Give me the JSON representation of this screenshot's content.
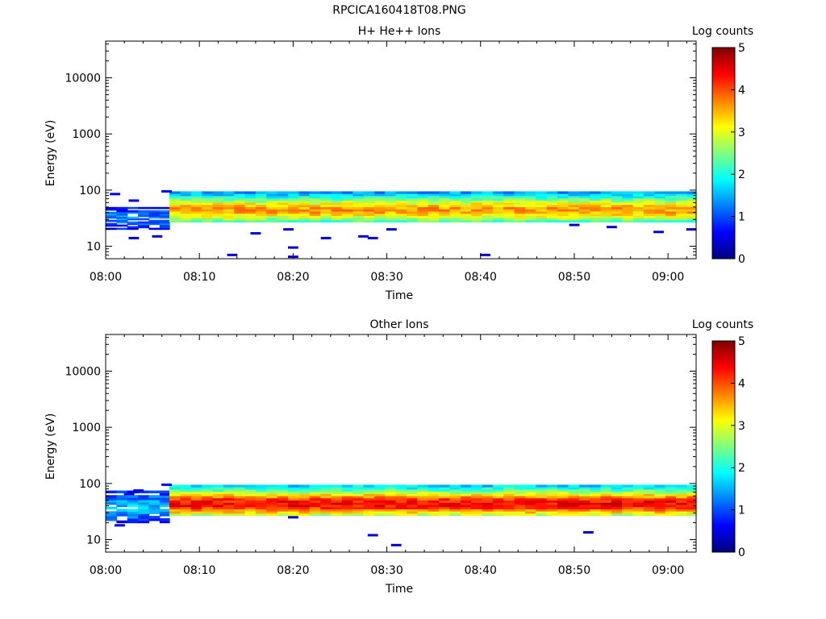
{
  "page": {
    "title": "RPCICA160418T08.PNG"
  },
  "colorbar": {
    "colors": [
      "#00007f",
      "#0000ff",
      "#007fff",
      "#00ffff",
      "#7fff7f",
      "#ffff00",
      "#ff7f00",
      "#ff0000",
      "#7f0000"
    ]
  },
  "chart_data": [
    {
      "type": "heatmap",
      "title": "H+ He++ Ions",
      "xlabel": "Time",
      "ylabel": "Energy (eV)",
      "y_scale": "log",
      "ylim": [
        6,
        45000
      ],
      "x_range_minutes": [
        0,
        63
      ],
      "xticks": [
        "08:00",
        "08:10",
        "08:20",
        "08:30",
        "08:40",
        "08:50",
        "09:00"
      ],
      "yticks": [
        "10",
        "100",
        "1000",
        "10000"
      ],
      "colorbar": {
        "label": "Log counts",
        "range": [
          0,
          5
        ],
        "ticks": [
          "0",
          "1",
          "2",
          "3",
          "4",
          "5"
        ]
      },
      "segments": [
        {
          "start_min": 0,
          "end_min": 6.8,
          "energy_eV": [
            20,
            50
          ],
          "peak_log_counts": 1.3
        },
        {
          "start_min": 6.8,
          "end_min": 63,
          "energy_eV": [
            27,
            95
          ],
          "peak_energy_eV": 45,
          "peak_log_counts": 3.6
        }
      ],
      "sparse_points": [
        {
          "time_min": 1,
          "energy_eV": 85,
          "log_counts": 0.6
        },
        {
          "time_min": 3,
          "energy_eV": 65,
          "log_counts": 0.5
        },
        {
          "time_min": 3,
          "energy_eV": 14,
          "log_counts": 0.4
        },
        {
          "time_min": 5.5,
          "energy_eV": 15,
          "log_counts": 0.4
        },
        {
          "time_min": 6.5,
          "energy_eV": 95,
          "log_counts": 0.5
        },
        {
          "time_min": 13.5,
          "energy_eV": 7,
          "log_counts": 0.4
        },
        {
          "time_min": 16,
          "energy_eV": 17,
          "log_counts": 0.4
        },
        {
          "time_min": 19.5,
          "energy_eV": 20,
          "log_counts": 0.4
        },
        {
          "time_min": 20,
          "energy_eV": 9.5,
          "log_counts": 0.4
        },
        {
          "time_min": 20,
          "energy_eV": 6.5,
          "log_counts": 0.4
        },
        {
          "time_min": 23.5,
          "energy_eV": 14,
          "log_counts": 0.4
        },
        {
          "time_min": 27.5,
          "energy_eV": 15,
          "log_counts": 0.4
        },
        {
          "time_min": 28.5,
          "energy_eV": 14,
          "log_counts": 0.4
        },
        {
          "time_min": 30.5,
          "energy_eV": 20,
          "log_counts": 0.4
        },
        {
          "time_min": 40.5,
          "energy_eV": 7,
          "log_counts": 0.4
        },
        {
          "time_min": 50,
          "energy_eV": 24,
          "log_counts": 0.4
        },
        {
          "time_min": 54,
          "energy_eV": 22,
          "log_counts": 0.4
        },
        {
          "time_min": 59,
          "energy_eV": 18,
          "log_counts": 0.4
        },
        {
          "time_min": 62.5,
          "energy_eV": 20,
          "log_counts": 0.4
        }
      ]
    },
    {
      "type": "heatmap",
      "title": "Other Ions",
      "xlabel": "Time",
      "ylabel": "Energy (eV)",
      "y_scale": "log",
      "ylim": [
        6,
        45000
      ],
      "x_range_minutes": [
        0,
        63
      ],
      "xticks": [
        "08:00",
        "08:10",
        "08:20",
        "08:30",
        "08:40",
        "08:50",
        "09:00"
      ],
      "yticks": [
        "10",
        "100",
        "1000",
        "10000"
      ],
      "colorbar": {
        "label": "Log counts",
        "range": [
          0,
          5
        ],
        "ticks": [
          "0",
          "1",
          "2",
          "3",
          "4",
          "5"
        ]
      },
      "segments": [
        {
          "start_min": 0,
          "end_min": 6.8,
          "energy_eV": [
            20,
            75
          ],
          "peak_log_counts": 1.6
        },
        {
          "start_min": 6.8,
          "end_min": 63,
          "energy_eV": [
            27,
            95
          ],
          "peak_energy_eV": 44,
          "peak_log_counts": 4.4
        }
      ],
      "sparse_points": [
        {
          "time_min": 1.5,
          "energy_eV": 18,
          "log_counts": 0.4
        },
        {
          "time_min": 2.5,
          "energy_eV": 65,
          "log_counts": 0.5
        },
        {
          "time_min": 3.5,
          "energy_eV": 75,
          "log_counts": 0.5
        },
        {
          "time_min": 6.5,
          "energy_eV": 95,
          "log_counts": 0.6
        },
        {
          "time_min": 20,
          "energy_eV": 25,
          "log_counts": 0.4
        },
        {
          "time_min": 28.5,
          "energy_eV": 12,
          "log_counts": 0.4
        },
        {
          "time_min": 31,
          "energy_eV": 8,
          "log_counts": 0.4
        },
        {
          "time_min": 51.5,
          "energy_eV": 13.5,
          "log_counts": 0.4
        }
      ]
    }
  ]
}
